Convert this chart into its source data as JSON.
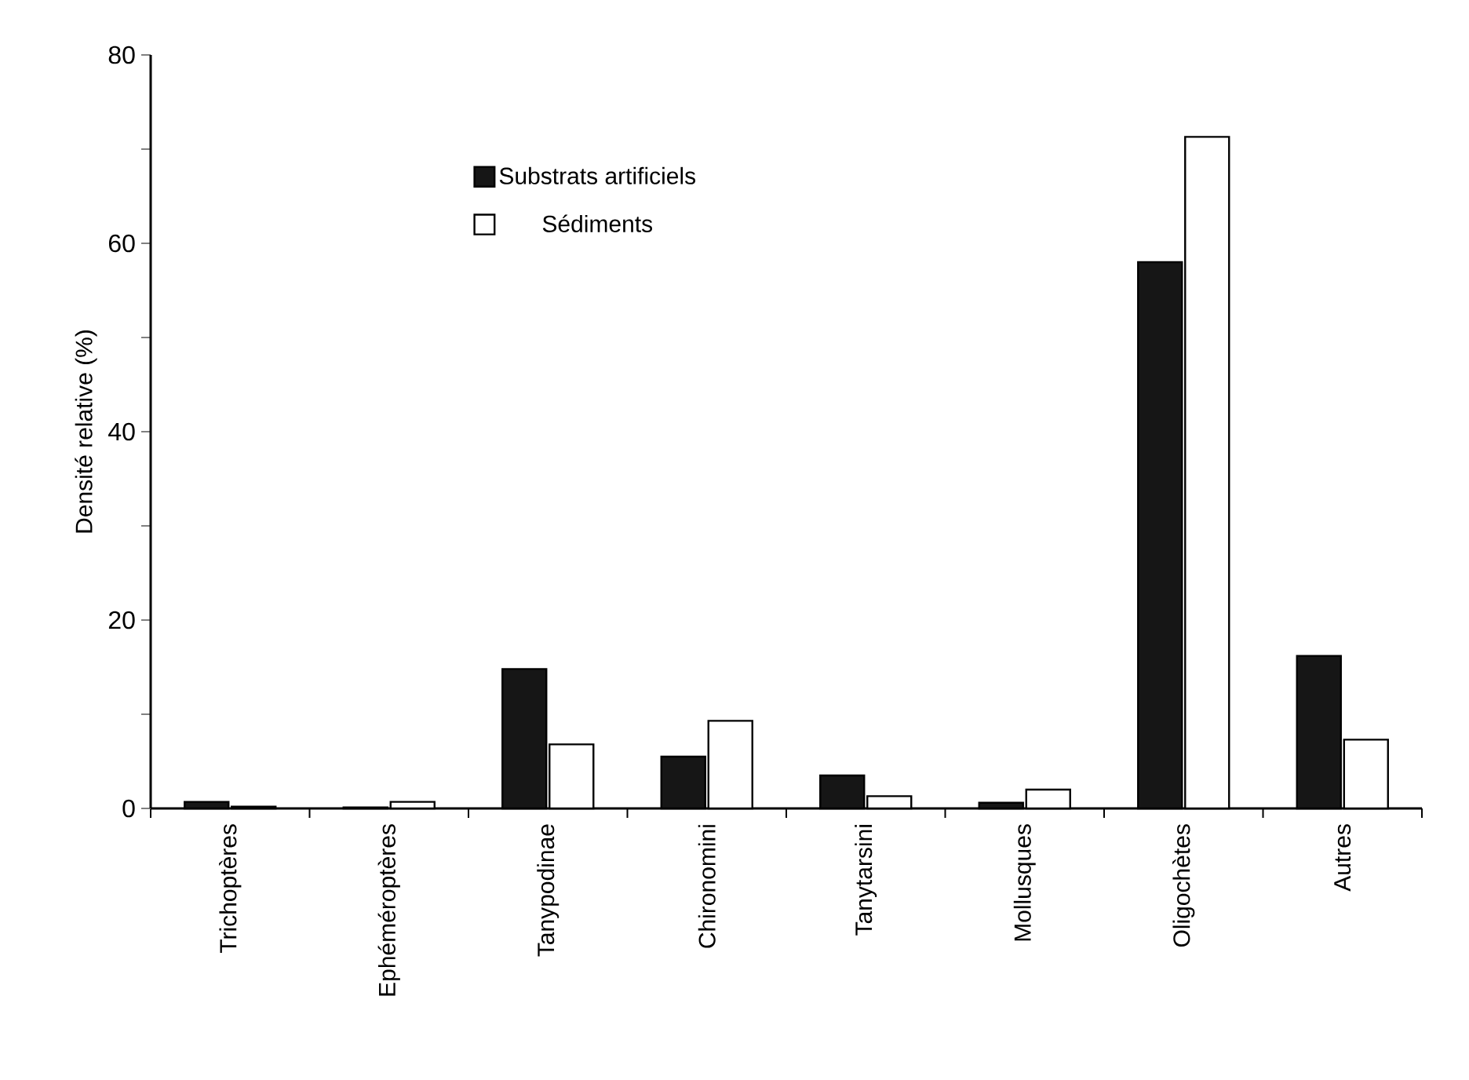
{
  "chart_data": {
    "type": "bar",
    "ylabel": "Densité relative (%)",
    "categories": [
      "Trichoptères",
      "Ephéméroptères",
      "Tanypodinae",
      "Chironomini",
      "Tanytarsini",
      "Mollusques",
      "Oligochètes",
      "Autres"
    ],
    "series": [
      {
        "name": "Substrats artificiels",
        "color": "#161616",
        "values": [
          0.7,
          0.1,
          14.8,
          5.5,
          3.5,
          0.6,
          58,
          16.2
        ]
      },
      {
        "name": "Sédiments",
        "color": "#ffffff",
        "values": [
          0.2,
          0.7,
          6.8,
          9.3,
          1.3,
          2.0,
          71.3,
          7.3
        ]
      }
    ],
    "ylim": [
      0,
      80
    ],
    "yticks": [
      0,
      {
        "value": 10,
        "label": null
      },
      20,
      {
        "value": 30,
        "label": null
      },
      40,
      {
        "value": 50,
        "label": null
      },
      60,
      {
        "value": 70,
        "label": null
      },
      80
    ],
    "legend": "top left"
  }
}
